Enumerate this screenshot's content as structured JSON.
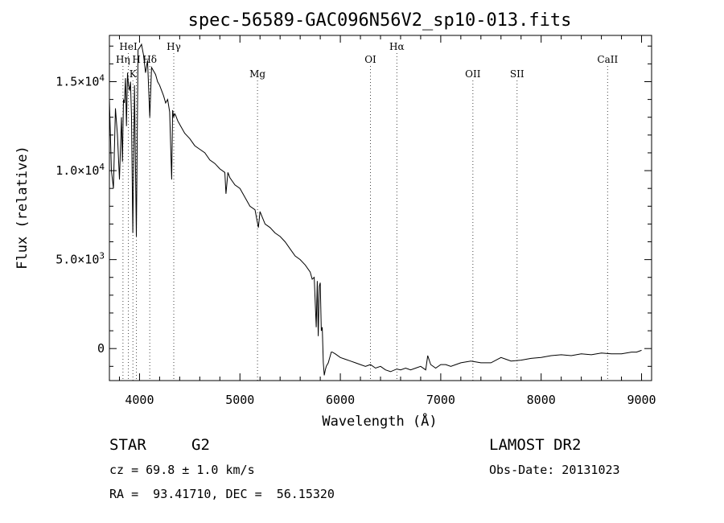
{
  "chart_data": {
    "type": "line",
    "title": "spec-56589-GAC096N56V2_sp10-013.fits",
    "xlabel": "Wavelength (Å)",
    "ylabel": "Flux (relative)",
    "xlim": [
      3700,
      9100
    ],
    "ylim": [
      -1800,
      17600
    ],
    "x_ticks": [
      4000,
      5000,
      6000,
      7000,
      8000,
      9000
    ],
    "y_ticks": [
      {
        "value": 0,
        "label": "0",
        "exp": ""
      },
      {
        "value": 5000,
        "label": "5.0×10",
        "exp": "3"
      },
      {
        "value": 10000,
        "label": "1.0×10",
        "exp": "4"
      },
      {
        "value": 15000,
        "label": "1.5×10",
        "exp": "4"
      }
    ],
    "grid": false,
    "legend": "none",
    "series": [
      {
        "x": [
          3700,
          3720,
          3740,
          3760,
          3780,
          3800,
          3820,
          3830,
          3840,
          3850,
          3860,
          3870,
          3880,
          3890,
          3900,
          3910,
          3920,
          3933,
          3950,
          3968,
          3985,
          4000,
          4020,
          4040,
          4060,
          4080,
          4102,
          4120,
          4140,
          4160,
          4180,
          4200,
          4220,
          4240,
          4260,
          4280,
          4300,
          4320,
          4330,
          4340,
          4350,
          4360,
          4380,
          4400,
          4450,
          4500,
          4550,
          4600,
          4650,
          4700,
          4750,
          4800,
          4850,
          4861,
          4880,
          4900,
          4950,
          5000,
          5050,
          5100,
          5150,
          5170,
          5184,
          5200,
          5250,
          5300,
          5350,
          5400,
          5450,
          5500,
          5550,
          5600,
          5650,
          5700,
          5720,
          5740,
          5760,
          5770,
          5780,
          5790,
          5800,
          5810,
          5820,
          5830,
          5840,
          5850,
          5860,
          5870,
          5880,
          5890,
          5900,
          5910,
          5920,
          5950,
          6000,
          6050,
          6100,
          6150,
          6200,
          6250,
          6300,
          6350,
          6400,
          6450,
          6500,
          6563,
          6600,
          6650,
          6700,
          6750,
          6800,
          6850,
          6870,
          6900,
          6950,
          7000,
          7050,
          7100,
          7150,
          7200,
          7300,
          7400,
          7500,
          7600,
          7650,
          7700,
          7800,
          7900,
          8000,
          8100,
          8200,
          8300,
          8400,
          8500,
          8600,
          8700,
          8800,
          8900,
          8950,
          9000
        ],
        "y": [
          14000,
          10000,
          9000,
          13500,
          12000,
          9500,
          13000,
          10500,
          14000,
          13800,
          15200,
          12500,
          15500,
          14800,
          14500,
          15000,
          13000,
          6500,
          14800,
          6300,
          16800,
          16900,
          17100,
          16500,
          15500,
          16200,
          13000,
          15800,
          15600,
          15400,
          15000,
          14800,
          14500,
          14200,
          13800,
          14000,
          13300,
          9500,
          13400,
          13000,
          13200,
          13100,
          12800,
          12600,
          12100,
          11800,
          11400,
          11200,
          11000,
          10600,
          10400,
          10100,
          9900,
          8700,
          9900,
          9600,
          9200,
          9000,
          8500,
          8000,
          7800,
          7200,
          6800,
          7700,
          7000,
          6800,
          6500,
          6300,
          6000,
          5600,
          5200,
          5000,
          4700,
          4300,
          3900,
          4000,
          1200,
          3800,
          700,
          3500,
          3700,
          1000,
          1200,
          -800,
          -1500,
          -1200,
          -1000,
          -900,
          -800,
          -600,
          -400,
          -200,
          -200,
          -300,
          -500,
          -600,
          -700,
          -800,
          -900,
          -1000,
          -900,
          -1100,
          -1000,
          -1200,
          -1300,
          -1150,
          -1200,
          -1100,
          -1200,
          -1100,
          -1000,
          -1200,
          -400,
          -900,
          -1100,
          -900,
          -900,
          -1000,
          -900,
          -800,
          -700,
          -800,
          -800,
          -500,
          -600,
          -700,
          -650,
          -550,
          -500,
          -400,
          -350,
          -400,
          -300,
          -350,
          -250,
          -300,
          -300,
          -200,
          -200,
          -100
        ]
      }
    ],
    "lines": [
      {
        "label": "HeI",
        "x": 3889,
        "row": 0
      },
      {
        "label": "Hη",
        "x": 3835,
        "row": 1
      },
      {
        "label": "K",
        "x": 3934,
        "row": 2
      },
      {
        "label": "H",
        "x": 3969,
        "row": 1
      },
      {
        "label": "Hδ",
        "x": 4102,
        "row": 1
      },
      {
        "label": "Hγ",
        "x": 4341,
        "row": 0
      },
      {
        "label": "Mg",
        "x": 5175,
        "row": 2
      },
      {
        "label": "OI",
        "x": 6300,
        "row": 1
      },
      {
        "label": "Hα",
        "x": 6563,
        "row": 0
      },
      {
        "label": "OII",
        "x": 7320,
        "row": 2
      },
      {
        "label": "SII",
        "x": 7760,
        "row": 2
      },
      {
        "label": "CaII",
        "x": 8662,
        "row": 1
      }
    ]
  },
  "info": {
    "obj_class": "STAR",
    "subclass": "G2",
    "cz": "cz = 69.8 ± 1.0 km/s",
    "radec": "RA =  93.41710, DEC =  56.15320",
    "survey": "LAMOST DR2",
    "obsdate": "Obs-Date: 20131023"
  }
}
